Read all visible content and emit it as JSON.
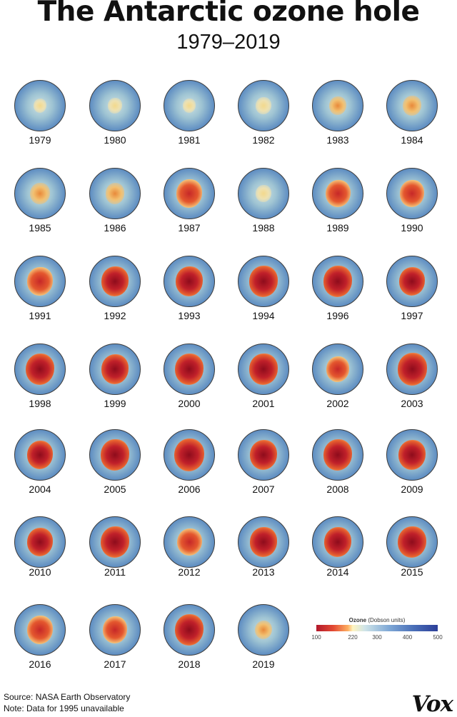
{
  "header": {
    "title": "The Antarctic ozone hole",
    "subtitle": "1979–2019"
  },
  "maps": [
    {
      "year": "1979",
      "hole": 0.15
    },
    {
      "year": "1980",
      "hole": 0.18
    },
    {
      "year": "1981",
      "hole": 0.12
    },
    {
      "year": "1982",
      "hole": 0.25
    },
    {
      "year": "1983",
      "hole": 0.32
    },
    {
      "year": "1984",
      "hole": 0.38
    },
    {
      "year": "1985",
      "hole": 0.45
    },
    {
      "year": "1986",
      "hole": 0.42
    },
    {
      "year": "1987",
      "hole": 0.72
    },
    {
      "year": "1988",
      "hole": 0.25
    },
    {
      "year": "1989",
      "hole": 0.7
    },
    {
      "year": "1990",
      "hole": 0.68
    },
    {
      "year": "1991",
      "hole": 0.72
    },
    {
      "year": "1992",
      "hole": 0.78
    },
    {
      "year": "1993",
      "hole": 0.8
    },
    {
      "year": "1994",
      "hole": 0.85
    },
    {
      "year": "1996",
      "hole": 0.85
    },
    {
      "year": "1997",
      "hole": 0.76
    },
    {
      "year": "1998",
      "hole": 0.88
    },
    {
      "year": "1999",
      "hole": 0.82
    },
    {
      "year": "2000",
      "hole": 0.86
    },
    {
      "year": "2001",
      "hole": 0.85
    },
    {
      "year": "2002",
      "hole": 0.6
    },
    {
      "year": "2003",
      "hole": 0.9
    },
    {
      "year": "2004",
      "hole": 0.75
    },
    {
      "year": "2005",
      "hole": 0.85
    },
    {
      "year": "2006",
      "hole": 0.93
    },
    {
      "year": "2007",
      "hole": 0.82
    },
    {
      "year": "2008",
      "hole": 0.88
    },
    {
      "year": "2009",
      "hole": 0.8
    },
    {
      "year": "2010",
      "hole": 0.76
    },
    {
      "year": "2011",
      "hole": 0.86
    },
    {
      "year": "2012",
      "hole": 0.7
    },
    {
      "year": "2013",
      "hole": 0.78
    },
    {
      "year": "2014",
      "hole": 0.8
    },
    {
      "year": "2015",
      "hole": 0.88
    },
    {
      "year": "2016",
      "hole": 0.74
    },
    {
      "year": "2017",
      "hole": 0.66
    },
    {
      "year": "2018",
      "hole": 0.86
    },
    {
      "year": "2019",
      "hole": 0.35
    }
  ],
  "legend": {
    "title": "Ozone",
    "unit": "(Dobson units)",
    "ticks": [
      "100",
      "220",
      "300",
      "400",
      "500"
    ],
    "tick_values": [
      100,
      220,
      300,
      400,
      500
    ],
    "range": [
      100,
      500
    ]
  },
  "footer": {
    "source": "Source: NASA Earth Observatory",
    "note": "Note: Data for 1995 unavailable",
    "logo": "Vox"
  }
}
